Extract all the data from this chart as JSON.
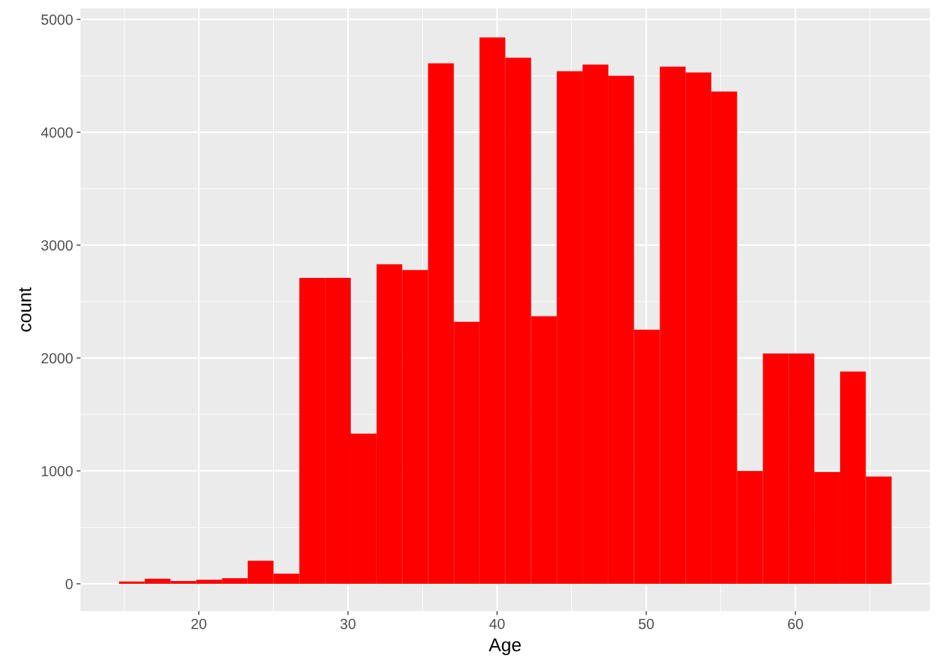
{
  "chart_data": {
    "type": "histogram",
    "xlabel": "Age",
    "ylabel": "count",
    "color": "#ff0000",
    "bins": [
      14.65,
      16.38,
      18.1,
      19.83,
      21.56,
      23.28,
      25.01,
      26.74,
      28.46,
      30.19,
      31.92,
      33.64,
      35.37,
      37.1,
      38.82,
      40.55,
      42.28,
      44.0,
      45.73,
      47.46,
      49.18,
      50.91,
      52.64,
      54.36,
      56.09,
      57.82,
      59.54,
      61.27,
      63.0,
      64.72,
      66.45
    ],
    "values": [
      20,
      45,
      25,
      35,
      50,
      205,
      90,
      2710,
      2710,
      1330,
      2830,
      2780,
      4610,
      2320,
      4840,
      4660,
      2370,
      4540,
      4600,
      4500,
      2250,
      4580,
      4530,
      4360,
      1000,
      2040,
      2040,
      990,
      1880,
      950
    ],
    "xlim": [
      12.07,
      69.01
    ],
    "ylim": [
      -242,
      5097
    ],
    "xticks": [
      {
        "value": 15,
        "label": null
      },
      20,
      {
        "value": 25,
        "label": null
      },
      30,
      {
        "value": 35,
        "label": null
      },
      40,
      {
        "value": 45,
        "label": null
      },
      50,
      {
        "value": 55,
        "label": null
      },
      60,
      {
        "value": 65,
        "label": null
      }
    ],
    "yticks": [
      0,
      {
        "value": 500,
        "label": null
      },
      1000,
      {
        "value": 1500,
        "label": null
      },
      2000,
      {
        "value": 2500,
        "label": null
      },
      3000,
      {
        "value": 3500,
        "label": null
      },
      4000,
      {
        "value": 4500,
        "label": null
      },
      5000
    ],
    "grid": true
  }
}
